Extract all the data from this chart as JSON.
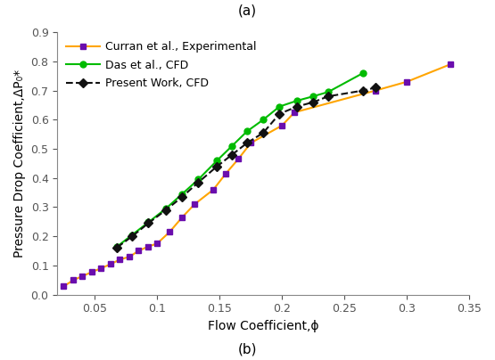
{
  "title_top": "(a)",
  "title_bottom": "(b)",
  "xlabel": "Flow Coefficient,ϕ",
  "ylabel": "Pressure Drop Coefficient,ΔP₀*",
  "xlim": [
    0.02,
    0.35
  ],
  "ylim": [
    0.0,
    0.9
  ],
  "xticks": [
    0.05,
    0.1,
    0.15,
    0.2,
    0.25,
    0.3,
    0.35
  ],
  "yticks": [
    0.0,
    0.1,
    0.2,
    0.3,
    0.4,
    0.5,
    0.6,
    0.7,
    0.8,
    0.9
  ],
  "series": [
    {
      "label": "Curran et al., Experimental",
      "color": "#FFA500",
      "marker": "s",
      "markercolor": "#6A0DAD",
      "linestyle": "-",
      "linewidth": 1.5,
      "markersize": 5,
      "x": [
        0.025,
        0.033,
        0.04,
        0.048,
        0.055,
        0.063,
        0.07,
        0.078,
        0.085,
        0.093,
        0.1,
        0.11,
        0.12,
        0.13,
        0.145,
        0.155,
        0.165,
        0.175,
        0.2,
        0.21,
        0.275,
        0.3,
        0.335
      ],
      "y": [
        0.028,
        0.05,
        0.063,
        0.078,
        0.09,
        0.105,
        0.12,
        0.13,
        0.15,
        0.165,
        0.175,
        0.215,
        0.265,
        0.31,
        0.36,
        0.415,
        0.465,
        0.52,
        0.58,
        0.625,
        0.7,
        0.73,
        0.79
      ]
    },
    {
      "label": "Das et al., CFD",
      "color": "#00BB00",
      "marker": "o",
      "markercolor": "#00BB00",
      "linestyle": "-",
      "linewidth": 1.5,
      "markersize": 5,
      "x": [
        0.068,
        0.08,
        0.093,
        0.107,
        0.12,
        0.133,
        0.148,
        0.16,
        0.172,
        0.185,
        0.198,
        0.212,
        0.225,
        0.237,
        0.265
      ],
      "y": [
        0.165,
        0.205,
        0.248,
        0.295,
        0.345,
        0.395,
        0.46,
        0.51,
        0.56,
        0.6,
        0.645,
        0.665,
        0.68,
        0.695,
        0.76
      ]
    },
    {
      "label": "Present Work, CFD",
      "color": "#111111",
      "marker": "D",
      "markercolor": "#111111",
      "linestyle": "--",
      "linewidth": 1.5,
      "markersize": 5,
      "x": [
        0.068,
        0.08,
        0.093,
        0.107,
        0.12,
        0.133,
        0.148,
        0.16,
        0.172,
        0.185,
        0.198,
        0.212,
        0.225,
        0.237,
        0.265,
        0.275
      ],
      "y": [
        0.162,
        0.2,
        0.245,
        0.29,
        0.335,
        0.385,
        0.44,
        0.48,
        0.52,
        0.555,
        0.62,
        0.645,
        0.66,
        0.68,
        0.7,
        0.71
      ]
    }
  ],
  "legend_loc": "upper left",
  "background_color": "#ffffff",
  "figsize": [
    5.55,
    4.04
  ],
  "dpi": 100
}
